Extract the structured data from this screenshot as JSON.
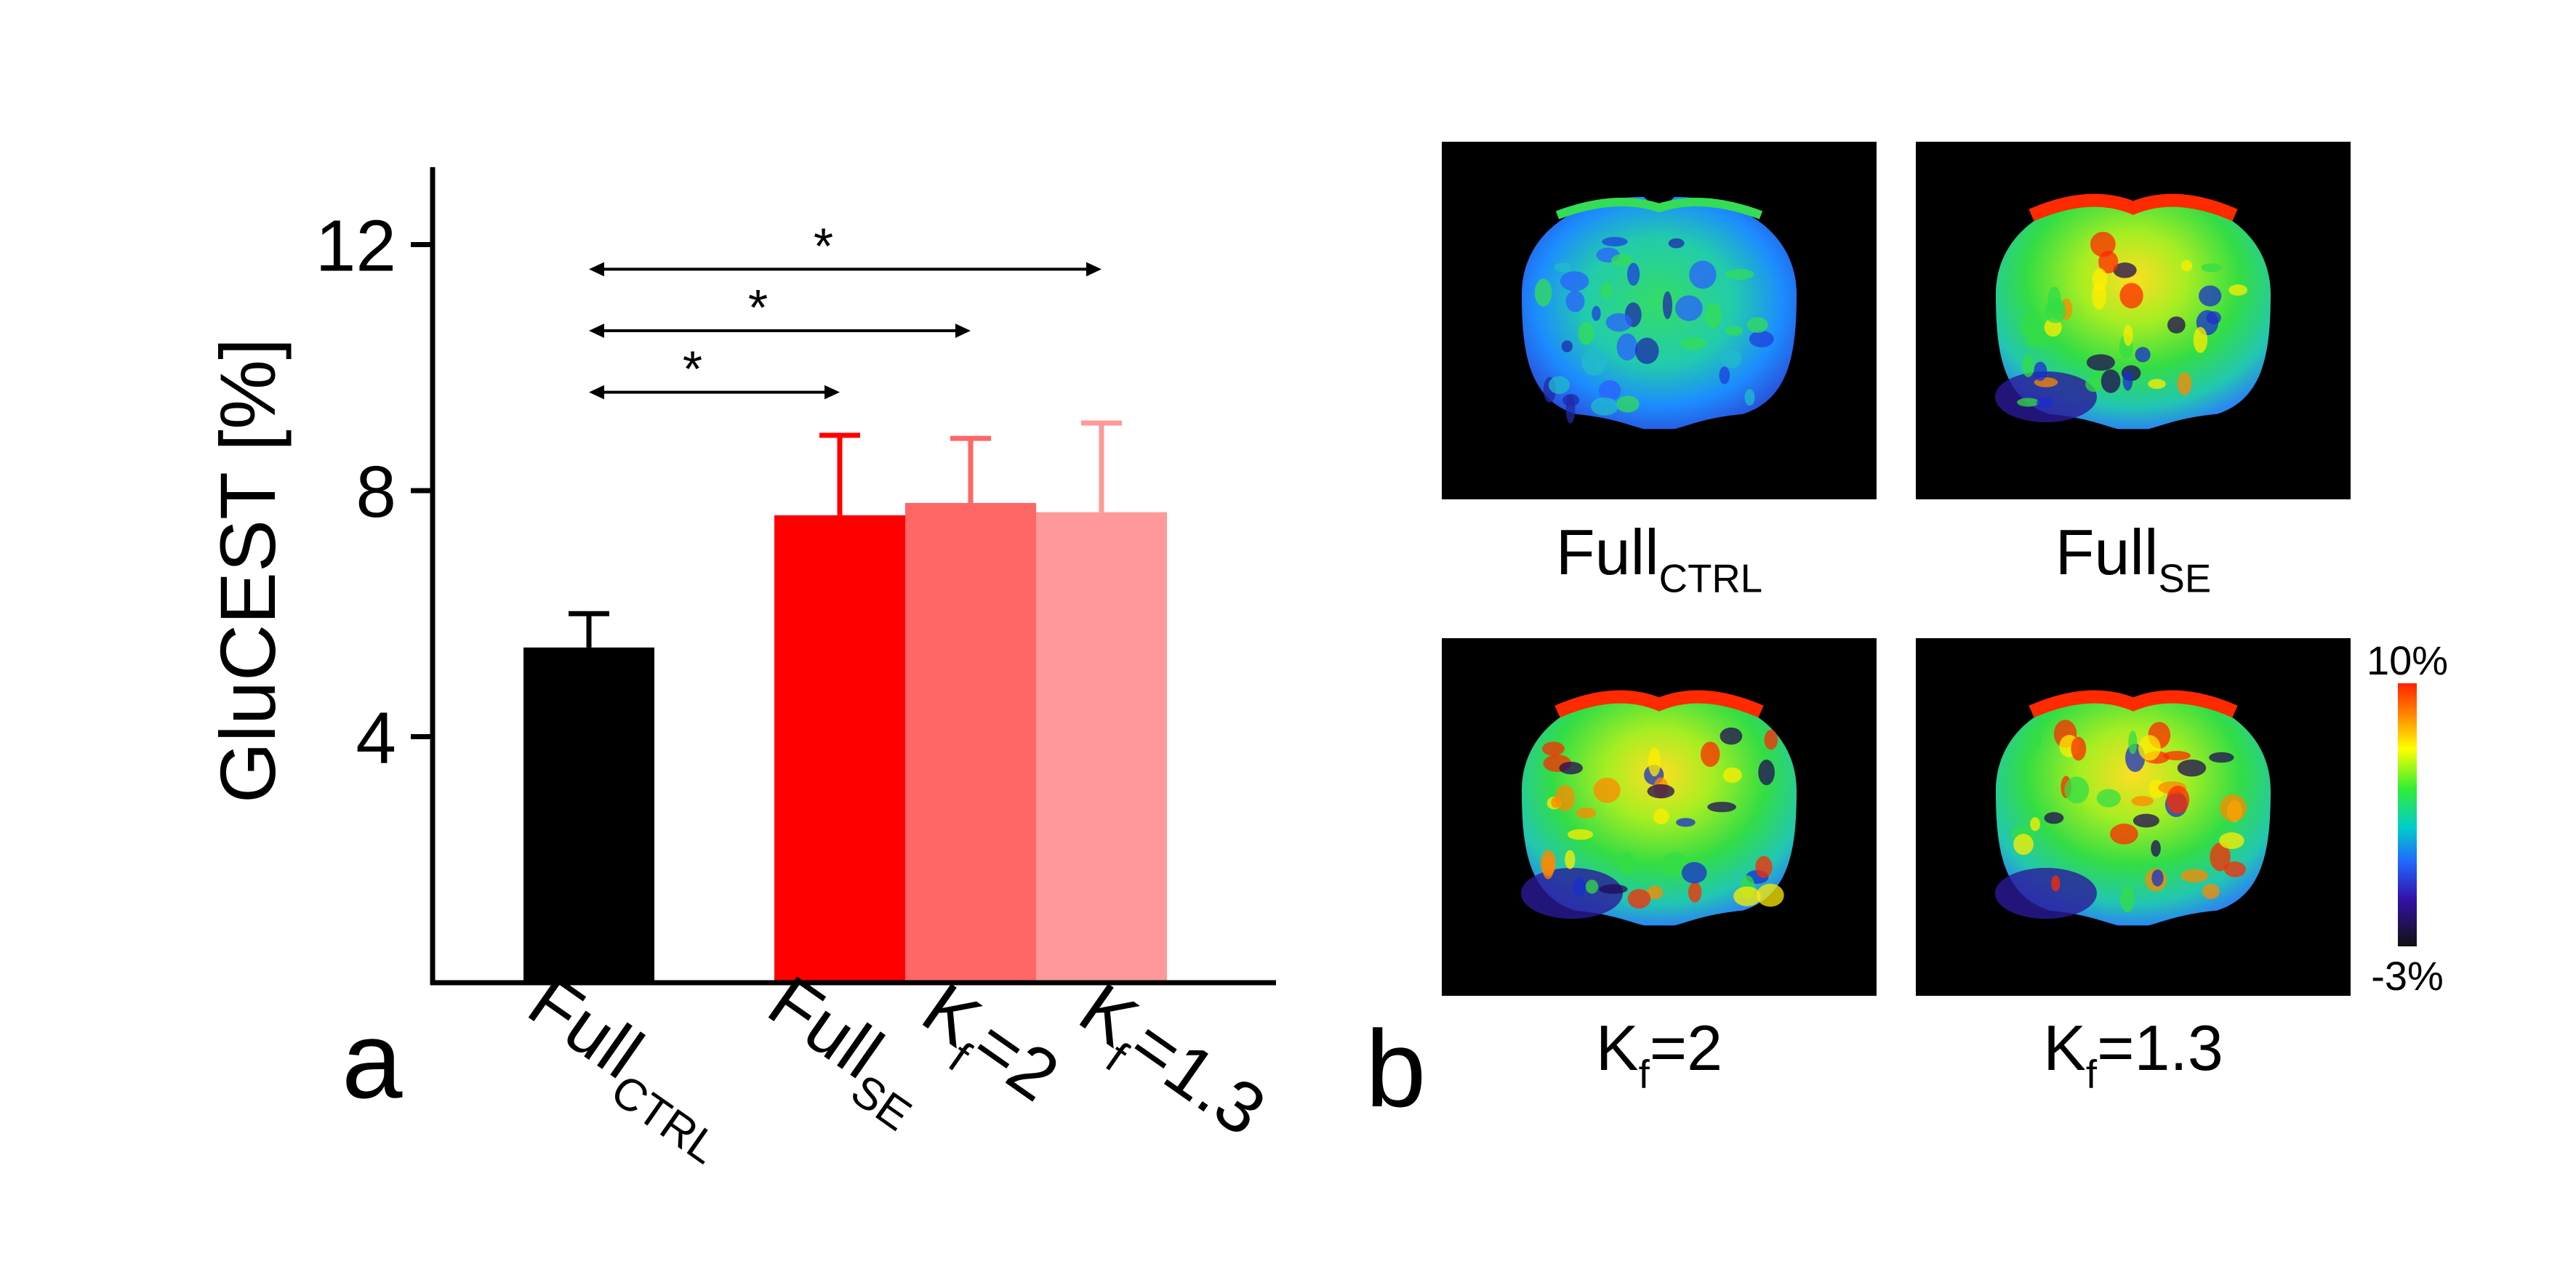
{
  "chart_data": {
    "type": "bar",
    "panel_label": "a",
    "ylabel": "GluCEST [%]",
    "ylim": [
      0,
      13.2
    ],
    "yticks": [
      4,
      8,
      12
    ],
    "categories": [
      {
        "base": "Full",
        "sub": "CTRL",
        "suffix": ""
      },
      {
        "base": "Full",
        "sub": "SE",
        "suffix": ""
      },
      {
        "base": "K",
        "sub": "f",
        "suffix": "=2"
      },
      {
        "base": "K",
        "sub": "f",
        "suffix": "=1.3"
      }
    ],
    "values": [
      5.45,
      7.6,
      7.8,
      7.65
    ],
    "errors": [
      0.55,
      1.3,
      1.05,
      1.45
    ],
    "colors": [
      "#000000",
      "#ff0000",
      "#ff6666",
      "#ff9999"
    ],
    "significance": [
      {
        "from": 0,
        "to": 1,
        "label": "*",
        "y": 9.6
      },
      {
        "from": 0,
        "to": 2,
        "label": "*",
        "y": 10.6
      },
      {
        "from": 0,
        "to": 3,
        "label": "*",
        "y": 11.6
      }
    ]
  },
  "panel_b": {
    "label": "b",
    "images": [
      {
        "base": "Full",
        "sub": "CTRL",
        "suffix": "",
        "variant": "ctrl"
      },
      {
        "base": "Full",
        "sub": "SE",
        "suffix": "",
        "variant": "se"
      },
      {
        "base": "K",
        "sub": "f",
        "suffix": "=2",
        "variant": "se"
      },
      {
        "base": "K",
        "sub": "f",
        "suffix": "=1.3",
        "variant": "se"
      }
    ],
    "colorbar": {
      "max_label": "10%",
      "min_label": "-3%"
    }
  }
}
